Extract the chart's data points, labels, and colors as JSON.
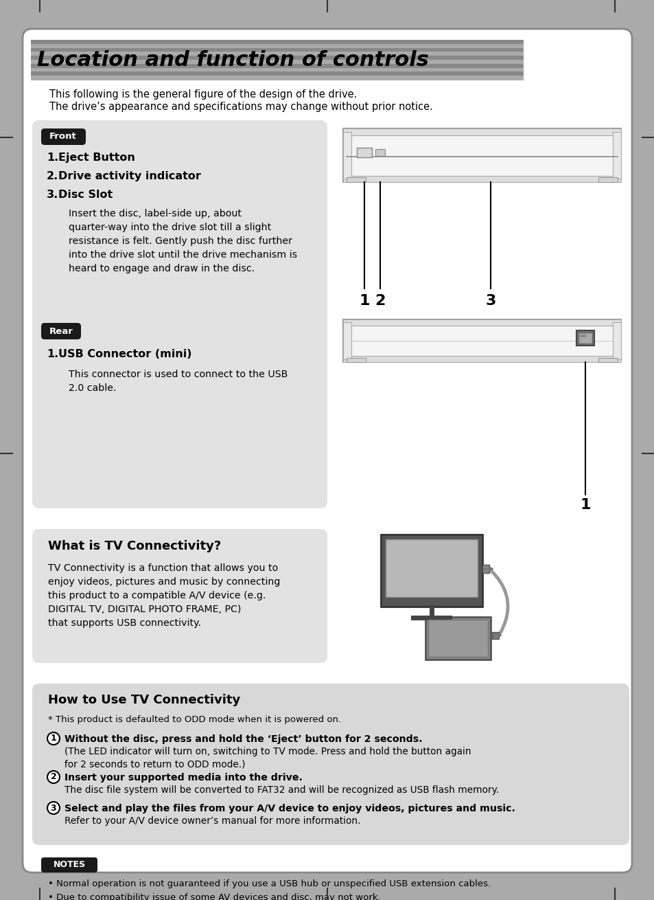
{
  "bg_outer": "#aaaaaa",
  "title": "Location and function of controls",
  "subtitle1": "This following is the general figure of the design of the drive.",
  "subtitle2": "The drive’s appearance and specifications may change without prior notice.",
  "front_label": "Front",
  "rear_label": "Rear",
  "front_item1_num": "1.",
  "front_item1_text": "Eject Button",
  "front_item2_num": "2.",
  "front_item2_text": "Drive activity indicator",
  "front_item3_num": "3.",
  "front_item3_text": "Disc Slot",
  "front_desc": "Insert the disc, label-side up, about\nquarter-way into the drive slot till a slight\nresistance is felt. Gently push the disc further\ninto the drive slot until the drive mechanism is\nheard to engage and draw in the disc.",
  "rear_item1_num": "1.",
  "rear_item1_text": "USB Connector (mini)",
  "rear_desc1": "This connector is used to connect to the USB",
  "rear_desc2": "2.0 cable.",
  "tv_title": "What is TV Connectivity?",
  "tv_desc": "TV Connectivity is a function that allows you to\nenjoy videos, pictures and music by connecting\nthis product to a compatible A/V device (e.g.\nDIGITAL TV, DIGITAL PHOTO FRAME, PC)\nthat supports USB connectivity.",
  "how_title": "How to Use TV Connectivity",
  "how_note": "* This product is defaulted to ODD mode when it is powered on.",
  "how_step1_bold": "Without the disc, press and hold the ‘Eject’ button for 2 seconds.",
  "how_step1_rest": "(The LED indicator will turn on, switching to TV mode. Press and hold the button again\nfor 2 seconds to return to ODD mode.)",
  "how_step2_bold": "Insert your supported media into the drive.",
  "how_step2_rest": "The disc file system will be converted to FAT32 and will be recognized as USB flash memory.",
  "how_step3_bold": "Select and play the files from your A/V device to enjoy videos, pictures and music.",
  "how_step3_rest": "Refer to your A/V device owner’s manual for more information.",
  "notes_label": "NOTES",
  "note1": "• Normal operation is not guaranteed if you use a USB hub or unspecified USB extension cables.",
  "note2": "• Due to compatibility issue of some AV devices and disc, may not work.",
  "stripe_colors": [
    "#888888",
    "#aaaaaa",
    "#888888",
    "#aaaaaa",
    "#888888",
    "#aaaaaa",
    "#888888",
    "#aaaaaa",
    "#888888",
    "#aaaaaa"
  ],
  "tag_color": "#1a1a1a",
  "section_bg": "#e2e2e2",
  "how_bg": "#d8d8d8",
  "page_bg": "#ffffff",
  "border_color": "#888888"
}
